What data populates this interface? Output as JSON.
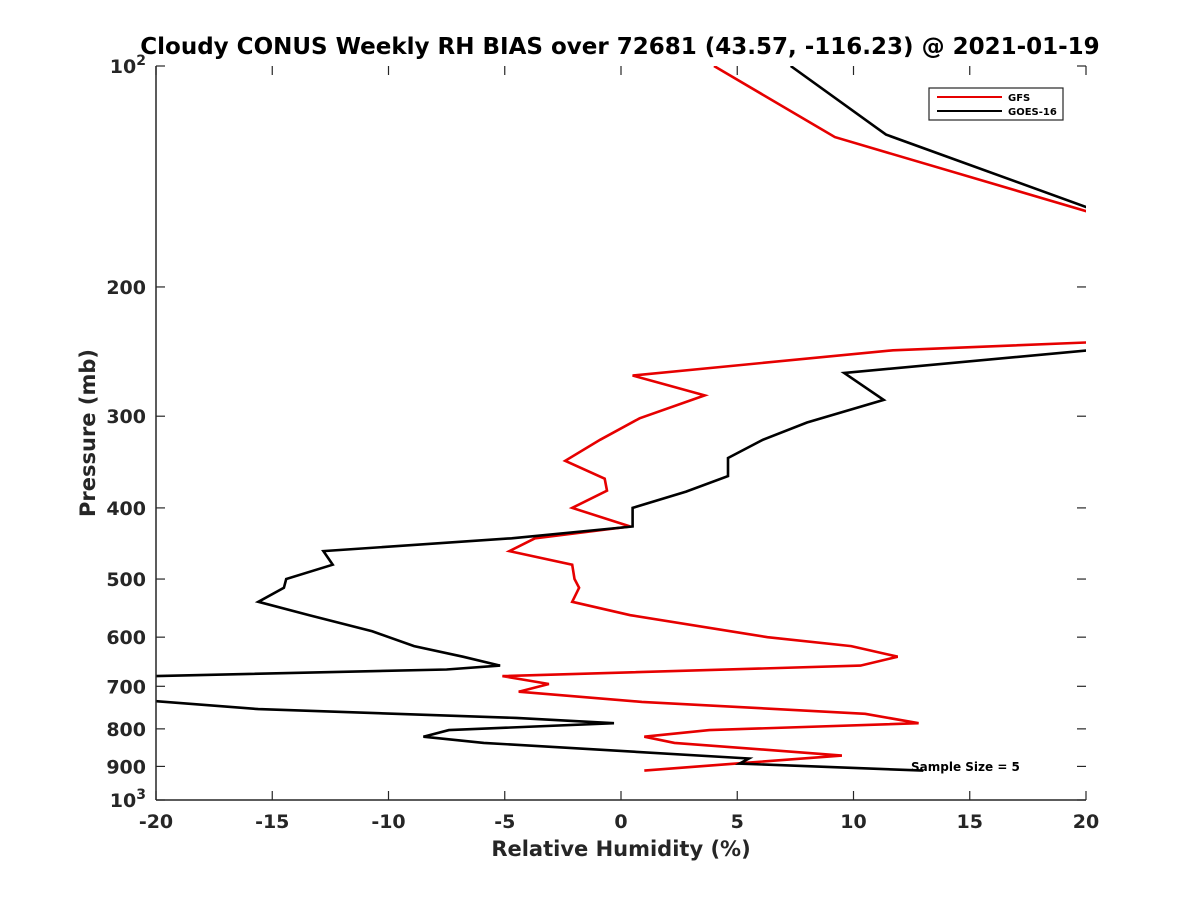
{
  "chart_data": {
    "type": "line",
    "title": "Cloudy CONUS Weekly RH BIAS over 72681 (43.57, -116.23) @ 2021-01-19",
    "xlabel": "Relative Humidity (%)",
    "ylabel": "Pressure (mb)",
    "xlim": [
      -20,
      20
    ],
    "ylim": [
      100,
      1000
    ],
    "y_scale": "log",
    "y_reversed": true,
    "grid": false,
    "legend_position": "top-right",
    "x_ticks": [
      "-20",
      "-15",
      "-10",
      "-5",
      "0",
      "5",
      "10",
      "15",
      "20"
    ],
    "y_ticks": [
      {
        "value": 100,
        "base": "10",
        "exp": "2"
      },
      {
        "value": 200,
        "label": "200"
      },
      {
        "value": 300,
        "label": "300"
      },
      {
        "value": 400,
        "label": "400"
      },
      {
        "value": 500,
        "label": "500"
      },
      {
        "value": 600,
        "label": "600"
      },
      {
        "value": 700,
        "label": "700"
      },
      {
        "value": 800,
        "label": "800"
      },
      {
        "value": 900,
        "label": "900"
      },
      {
        "value": 1000,
        "base": "10",
        "exp": "3"
      }
    ],
    "annotation": "Sample Size = 5",
    "series": [
      {
        "name": "GFS",
        "color": "#e60000",
        "segments": [
          [
            [
              4.0,
              100
            ],
            [
              9.2,
              125
            ],
            [
              20.1,
              158
            ]
          ],
          [
            [
              20.1,
              238
            ],
            [
              11.7,
              244
            ],
            [
              0.5,
              264
            ],
            [
              3.6,
              281
            ],
            [
              0.8,
              302
            ],
            [
              -0.9,
              323
            ],
            [
              -2.4,
              345
            ],
            [
              -0.7,
              365
            ],
            [
              -0.6,
              379
            ],
            [
              -2.1,
              400
            ],
            [
              0.4,
              424
            ],
            [
              -3.7,
              440
            ],
            [
              -4.8,
              458
            ],
            [
              -2.1,
              478
            ],
            [
              -2.0,
              500
            ],
            [
              -1.8,
              514
            ],
            [
              -2.1,
              537
            ],
            [
              0.4,
              560
            ],
            [
              6.3,
              600
            ],
            [
              9.9,
              617
            ],
            [
              11.9,
              638
            ],
            [
              10.3,
              656
            ],
            [
              -5.1,
              678
            ],
            [
              -3.1,
              695
            ],
            [
              -4.4,
              712
            ],
            [
              0.9,
              735
            ],
            [
              10.5,
              763
            ],
            [
              12.8,
              786
            ],
            [
              3.8,
              803
            ],
            [
              1.0,
              820
            ],
            [
              2.3,
              836
            ],
            [
              6.2,
              854
            ],
            [
              9.5,
              870
            ],
            [
              5.3,
              890
            ],
            [
              1.0,
              912
            ]
          ]
        ]
      },
      {
        "name": "GOES-16",
        "color": "#000000",
        "segments": [
          [
            [
              7.3,
              100
            ],
            [
              11.4,
              124
            ],
            [
              20.1,
              156
            ]
          ],
          [
            [
              20.1,
              244
            ],
            [
              9.6,
              262
            ],
            [
              11.3,
              285
            ],
            [
              8.0,
              306
            ],
            [
              6.1,
              323
            ],
            [
              4.6,
              342
            ],
            [
              4.6,
              362
            ],
            [
              2.8,
              380
            ],
            [
              0.5,
              400
            ],
            [
              0.5,
              424
            ],
            [
              -4.7,
              440
            ],
            [
              -12.8,
              458
            ],
            [
              -12.4,
              478
            ],
            [
              -14.4,
              500
            ],
            [
              -14.5,
              514
            ],
            [
              -15.6,
              537
            ],
            [
              -13.4,
              560
            ],
            [
              -10.7,
              589
            ],
            [
              -8.9,
              617
            ],
            [
              -6.8,
              638
            ],
            [
              -5.2,
              656
            ],
            [
              -7.5,
              664
            ],
            [
              -20.1,
              678
            ]
          ],
          [
            [
              -20.1,
              733
            ],
            [
              -15.6,
              752
            ],
            [
              -4.5,
              773
            ],
            [
              -0.3,
              786
            ],
            [
              -7.4,
              803
            ],
            [
              -8.5,
              820
            ],
            [
              -5.9,
              836
            ],
            [
              5.5,
              878
            ],
            [
              5.1,
              892
            ],
            [
              13.0,
              912
            ]
          ]
        ]
      }
    ]
  }
}
